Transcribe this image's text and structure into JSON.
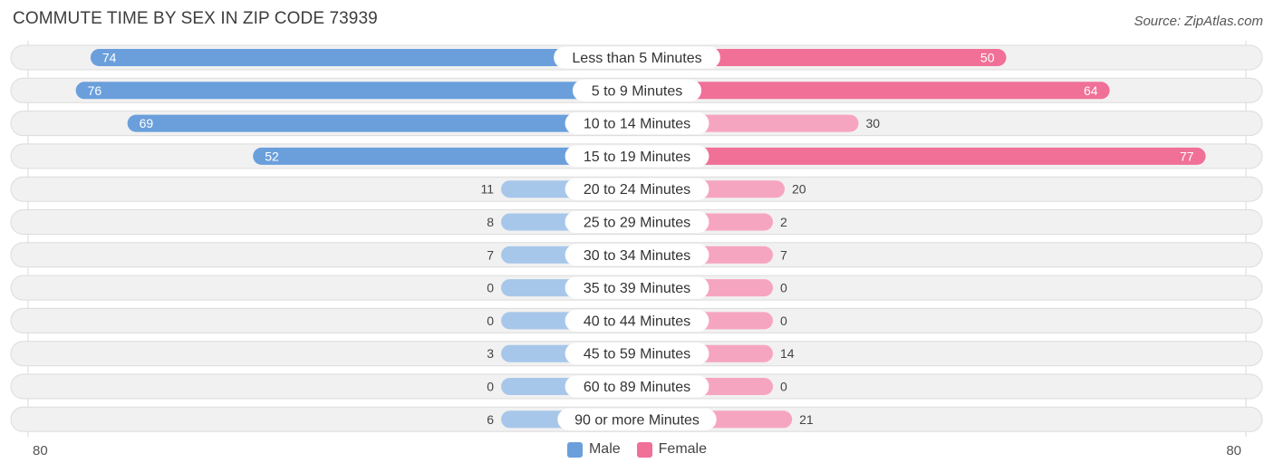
{
  "header": {
    "title": "COMMUTE TIME BY SEX IN ZIP CODE 73939",
    "source": "Source: ZipAtlas.com"
  },
  "colors": {
    "male_strong": "#6a9fdc",
    "male_light": "#a7c7ea",
    "female_strong": "#f07098",
    "female_light": "#f6a5c0",
    "row_bg": "#f1f1f1",
    "row_border": "#dcdcdc"
  },
  "chart_data": {
    "type": "bar",
    "orientation": "horizontal-diverging",
    "categories": [
      "Less than 5 Minutes",
      "5 to 9 Minutes",
      "10 to 14 Minutes",
      "15 to 19 Minutes",
      "20 to 24 Minutes",
      "25 to 29 Minutes",
      "30 to 34 Minutes",
      "35 to 39 Minutes",
      "40 to 44 Minutes",
      "45 to 59 Minutes",
      "60 to 89 Minutes",
      "90 or more Minutes"
    ],
    "series": [
      {
        "name": "Male",
        "values": [
          74,
          76,
          69,
          52,
          11,
          8,
          7,
          0,
          0,
          3,
          0,
          6
        ]
      },
      {
        "name": "Female",
        "values": [
          50,
          64,
          30,
          77,
          20,
          2,
          7,
          0,
          0,
          14,
          0,
          21
        ]
      }
    ],
    "xlim": [
      -80,
      80
    ],
    "axis_labels": {
      "left": "80",
      "right": "80"
    },
    "legend": {
      "placement": "bottom-center",
      "entries": [
        "Male",
        "Female"
      ]
    }
  }
}
